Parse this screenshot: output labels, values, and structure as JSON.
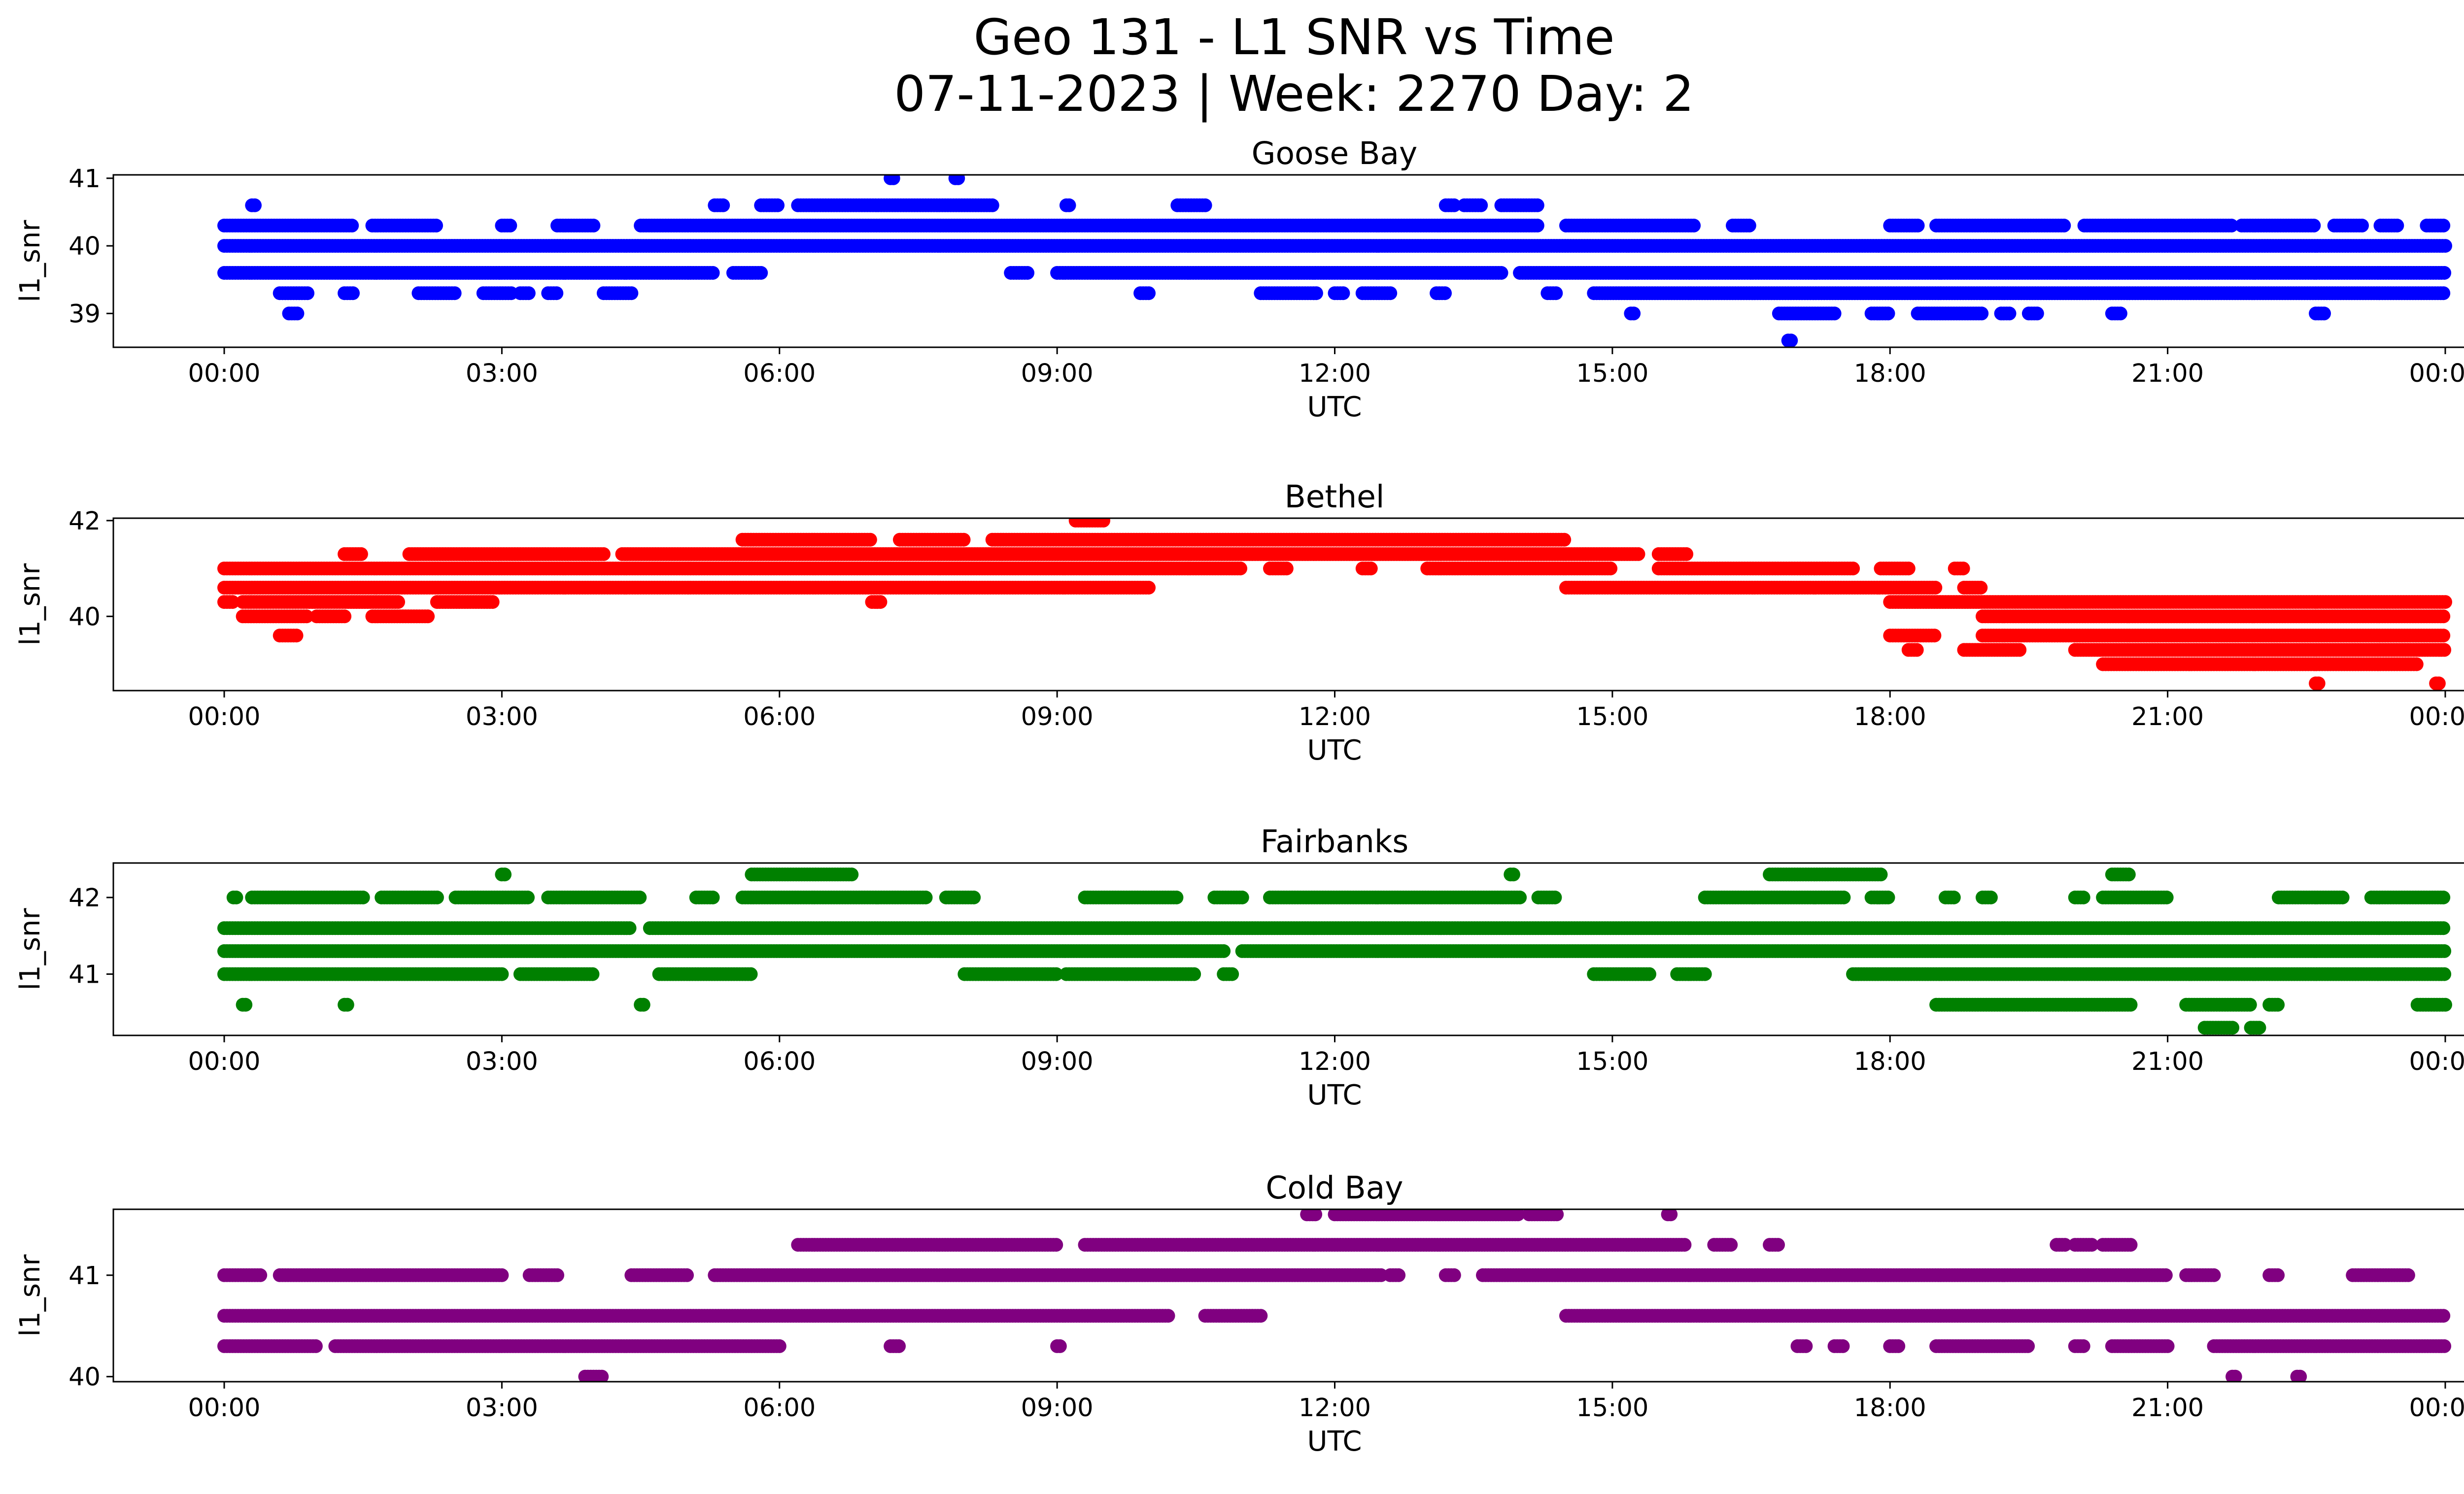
{
  "figure": {
    "title_line1": "Geo 131 - L1 SNR vs Time",
    "title_line2": "07-11-2023 | Week: 2270 Day: 2"
  },
  "chart_data": [
    {
      "type": "scatter",
      "title": "Goose Bay",
      "xlabel": "UTC",
      "ylabel": "l1_snr",
      "color": "#0000ff",
      "xlim_hours": [
        0,
        24
      ],
      "ylim": [
        38.5,
        41.05
      ],
      "yticks": [
        "39",
        "40",
        "41"
      ],
      "xticks": [
        "00:00",
        "03:00",
        "06:00",
        "09:00",
        "12:00",
        "15:00",
        "18:00",
        "21:00",
        "00:00"
      ],
      "series": [
        {
          "values_y": 40.0,
          "x_ranges_hours": [
            [
              0,
              24
            ]
          ]
        },
        {
          "values_y": 39.6,
          "x_ranges_hours": [
            [
              0,
              5.3
            ],
            [
              5.5,
              5.8
            ],
            [
              8.5,
              8.7
            ],
            [
              9.0,
              13.8
            ],
            [
              14.0,
              24.0
            ]
          ]
        },
        {
          "values_y": 40.3,
          "x_ranges_hours": [
            [
              0,
              1.4
            ],
            [
              1.6,
              2.3
            ],
            [
              3.0,
              3.1
            ],
            [
              3.6,
              4.0
            ],
            [
              4.5,
              14.2
            ],
            [
              14.5,
              15.9
            ],
            [
              16.3,
              16.5
            ],
            [
              18.0,
              18.3
            ],
            [
              18.5,
              19.9
            ],
            [
              20.1,
              21.7
            ],
            [
              21.8,
              22.6
            ],
            [
              22.8,
              23.1
            ],
            [
              23.3,
              23.5
            ],
            [
              23.8,
              24.0
            ]
          ]
        },
        {
          "values_y": 40.6,
          "x_ranges_hours": [
            [
              0.3,
              0.35
            ],
            [
              5.3,
              5.4
            ],
            [
              5.8,
              6.0
            ],
            [
              6.2,
              8.3
            ],
            [
              9.1,
              9.15
            ],
            [
              10.3,
              10.6
            ],
            [
              13.2,
              13.3
            ],
            [
              13.4,
              13.6
            ],
            [
              13.8,
              14.2
            ]
          ]
        },
        {
          "values_y": 39.3,
          "x_ranges_hours": [
            [
              0.6,
              0.9
            ],
            [
              1.3,
              1.4
            ],
            [
              2.1,
              2.5
            ],
            [
              2.8,
              3.1
            ],
            [
              3.2,
              3.3
            ],
            [
              3.5,
              3.6
            ],
            [
              4.1,
              4.4
            ],
            [
              9.9,
              10.0
            ],
            [
              11.2,
              11.8
            ],
            [
              12.0,
              12.1
            ],
            [
              12.3,
              12.6
            ],
            [
              13.1,
              13.2
            ],
            [
              14.3,
              14.4
            ],
            [
              14.8,
              24.0
            ]
          ]
        },
        {
          "values_y": 39.0,
          "x_ranges_hours": [
            [
              0.7,
              0.8
            ],
            [
              15.2,
              15.25
            ],
            [
              16.8,
              17.4
            ],
            [
              17.8,
              18.0
            ],
            [
              18.3,
              19.0
            ],
            [
              19.2,
              19.3
            ],
            [
              19.5,
              19.6
            ],
            [
              20.4,
              20.5
            ],
            [
              22.6,
              22.7
            ]
          ]
        },
        {
          "values_y": 41.0,
          "x_ranges_hours": [
            [
              7.2,
              7.25
            ],
            [
              7.9,
              7.95
            ]
          ]
        },
        {
          "values_y": 38.6,
          "x_ranges_hours": [
            [
              16.9,
              16.95
            ]
          ]
        }
      ]
    },
    {
      "type": "scatter",
      "title": "Bethel",
      "xlabel": "UTC",
      "ylabel": "l1_snr",
      "color": "#ff0000",
      "xlim_hours": [
        0,
        24
      ],
      "ylim": [
        38.45,
        42.05
      ],
      "yticks": [
        "40",
        "42"
      ],
      "xticks": [
        "00:00",
        "03:00",
        "06:00",
        "09:00",
        "12:00",
        "15:00",
        "18:00",
        "21:00",
        "00:00"
      ],
      "series": [
        {
          "values_y": 40.3,
          "x_ranges_hours": [
            [
              0,
              0.1
            ],
            [
              0.2,
              1.9
            ],
            [
              2.3,
              2.9
            ],
            [
              7.0,
              7.1
            ],
            [
              18.0,
              24.0
            ]
          ]
        },
        {
          "values_y": 40.0,
          "x_ranges_hours": [
            [
              0.2,
              0.9
            ],
            [
              1.0,
              1.3
            ],
            [
              1.6,
              2.2
            ],
            [
              19.0,
              24.0
            ]
          ]
        },
        {
          "values_y": 39.6,
          "x_ranges_hours": [
            [
              0.6,
              0.8
            ],
            [
              18.0,
              18.5
            ],
            [
              19.0,
              24.0
            ]
          ]
        },
        {
          "values_y": 39.3,
          "x_ranges_hours": [
            [
              18.2,
              18.3
            ],
            [
              18.8,
              19.4
            ],
            [
              20.0,
              24.0
            ]
          ]
        },
        {
          "values_y": 39.0,
          "x_ranges_hours": [
            [
              20.3,
              23.7
            ]
          ]
        },
        {
          "values_y": 38.6,
          "x_ranges_hours": [
            [
              22.6,
              22.65
            ],
            [
              23.9,
              23.95
            ]
          ]
        },
        {
          "values_y": 40.6,
          "x_ranges_hours": [
            [
              0,
              10.0
            ],
            [
              14.5,
              18.5
            ],
            [
              18.8,
              19.0
            ]
          ]
        },
        {
          "values_y": 41.0,
          "x_ranges_hours": [
            [
              0,
              11.0
            ],
            [
              11.3,
              11.5
            ],
            [
              12.3,
              12.4
            ],
            [
              13.0,
              15.0
            ],
            [
              15.5,
              17.6
            ],
            [
              17.9,
              18.2
            ],
            [
              18.7,
              18.8
            ]
          ]
        },
        {
          "values_y": 41.3,
          "x_ranges_hours": [
            [
              1.3,
              1.5
            ],
            [
              2.0,
              4.1
            ],
            [
              4.3,
              15.3
            ],
            [
              15.5,
              15.8
            ]
          ]
        },
        {
          "values_y": 41.6,
          "x_ranges_hours": [
            [
              5.6,
              7.0
            ],
            [
              7.3,
              8.0
            ],
            [
              8.3,
              14.5
            ]
          ]
        },
        {
          "values_y": 42.0,
          "x_ranges_hours": [
            [
              9.2,
              9.5
            ]
          ]
        }
      ]
    },
    {
      "type": "scatter",
      "title": "Fairbanks",
      "xlabel": "UTC",
      "ylabel": "l1_snr",
      "color": "#008000",
      "xlim_hours": [
        0,
        24
      ],
      "ylim": [
        40.2,
        42.45
      ],
      "yticks": [
        "41",
        "42"
      ],
      "xticks": [
        "00:00",
        "03:00",
        "06:00",
        "09:00",
        "12:00",
        "15:00",
        "18:00",
        "21:00",
        "00:00"
      ],
      "series": [
        {
          "values_y": 41.3,
          "x_ranges_hours": [
            [
              0,
              10.8
            ],
            [
              11.0,
              24.0
            ]
          ]
        },
        {
          "values_y": 41.6,
          "x_ranges_hours": [
            [
              0,
              4.4
            ],
            [
              4.6,
              24.0
            ]
          ]
        },
        {
          "values_y": 41.0,
          "x_ranges_hours": [
            [
              0,
              3.0
            ],
            [
              3.2,
              4.0
            ],
            [
              4.7,
              5.7
            ],
            [
              8.0,
              9.0
            ],
            [
              9.1,
              10.5
            ],
            [
              10.8,
              10.9
            ],
            [
              14.8,
              15.4
            ],
            [
              15.7,
              16.0
            ],
            [
              17.6,
              24.0
            ]
          ]
        },
        {
          "values_y": 42.0,
          "x_ranges_hours": [
            [
              0.1,
              0.15
            ],
            [
              0.3,
              1.5
            ],
            [
              1.7,
              2.3
            ],
            [
              2.5,
              3.3
            ],
            [
              3.5,
              4.5
            ],
            [
              5.1,
              5.3
            ],
            [
              5.6,
              7.6
            ],
            [
              7.8,
              8.1
            ],
            [
              9.3,
              10.3
            ],
            [
              10.7,
              11.0
            ],
            [
              11.3,
              14.0
            ],
            [
              14.2,
              14.4
            ],
            [
              16.0,
              17.5
            ],
            [
              17.8,
              18.0
            ],
            [
              18.6,
              18.7
            ],
            [
              19.0,
              19.1
            ],
            [
              20.0,
              20.1
            ],
            [
              20.3,
              21.0
            ],
            [
              22.2,
              22.9
            ],
            [
              23.2,
              24.0
            ]
          ]
        },
        {
          "values_y": 40.6,
          "x_ranges_hours": [
            [
              0.2,
              0.25
            ],
            [
              1.3,
              1.35
            ],
            [
              4.5,
              4.55
            ],
            [
              18.5,
              20.6
            ],
            [
              21.2,
              21.9
            ],
            [
              22.1,
              22.2
            ],
            [
              23.7,
              24.0
            ]
          ]
        },
        {
          "values_y": 42.3,
          "x_ranges_hours": [
            [
              3.0,
              3.05
            ],
            [
              5.7,
              6.8
            ],
            [
              13.9,
              13.95
            ],
            [
              16.7,
              17.9
            ],
            [
              20.4,
              20.6
            ]
          ]
        },
        {
          "values_y": 40.3,
          "x_ranges_hours": [
            [
              21.4,
              21.7
            ],
            [
              21.9,
              22.0
            ]
          ]
        }
      ]
    },
    {
      "type": "scatter",
      "title": "Cold Bay",
      "xlabel": "UTC",
      "ylabel": "l1_snr",
      "color": "#800080",
      "xlim_hours": [
        0,
        24
      ],
      "ylim": [
        39.95,
        41.65
      ],
      "yticks": [
        "40",
        "41"
      ],
      "xticks": [
        "00:00",
        "03:00",
        "06:00",
        "09:00",
        "12:00",
        "15:00",
        "18:00",
        "21:00",
        "00:00"
      ],
      "series": [
        {
          "values_y": 40.6,
          "x_ranges_hours": [
            [
              0,
              10.2
            ],
            [
              10.6,
              11.2
            ],
            [
              14.5,
              24.0
            ]
          ]
        },
        {
          "values_y": 40.3,
          "x_ranges_hours": [
            [
              0,
              1.0
            ],
            [
              1.2,
              6.0
            ],
            [
              7.2,
              7.3
            ],
            [
              9.0,
              9.05
            ],
            [
              17.0,
              17.1
            ],
            [
              17.4,
              17.5
            ],
            [
              18.0,
              18.1
            ],
            [
              18.5,
              19.5
            ],
            [
              20.0,
              20.1
            ],
            [
              20.4,
              21.0
            ],
            [
              21.5,
              24.0
            ]
          ]
        },
        {
          "values_y": 41.0,
          "x_ranges_hours": [
            [
              0,
              0.4
            ],
            [
              0.6,
              3.0
            ],
            [
              3.3,
              3.6
            ],
            [
              4.4,
              5.0
            ],
            [
              5.3,
              12.5
            ],
            [
              12.6,
              12.7
            ],
            [
              13.2,
              13.3
            ],
            [
              13.6,
              21.0
            ],
            [
              21.2,
              21.5
            ],
            [
              22.1,
              22.2
            ],
            [
              23.0,
              23.6
            ]
          ]
        },
        {
          "values_y": 41.3,
          "x_ranges_hours": [
            [
              6.2,
              9.0
            ],
            [
              9.3,
              15.8
            ],
            [
              16.1,
              16.3
            ],
            [
              16.7,
              16.8
            ],
            [
              19.8,
              19.9
            ],
            [
              20.0,
              20.2
            ],
            [
              20.3,
              20.6
            ]
          ]
        },
        {
          "values_y": 41.6,
          "x_ranges_hours": [
            [
              11.7,
              11.8
            ],
            [
              12.0,
              14.0
            ],
            [
              14.1,
              14.4
            ],
            [
              15.6,
              15.65
            ]
          ]
        },
        {
          "values_y": 40.0,
          "x_ranges_hours": [
            [
              3.9,
              4.1
            ],
            [
              21.7,
              21.75
            ],
            [
              22.4,
              22.45
            ]
          ]
        }
      ]
    }
  ]
}
